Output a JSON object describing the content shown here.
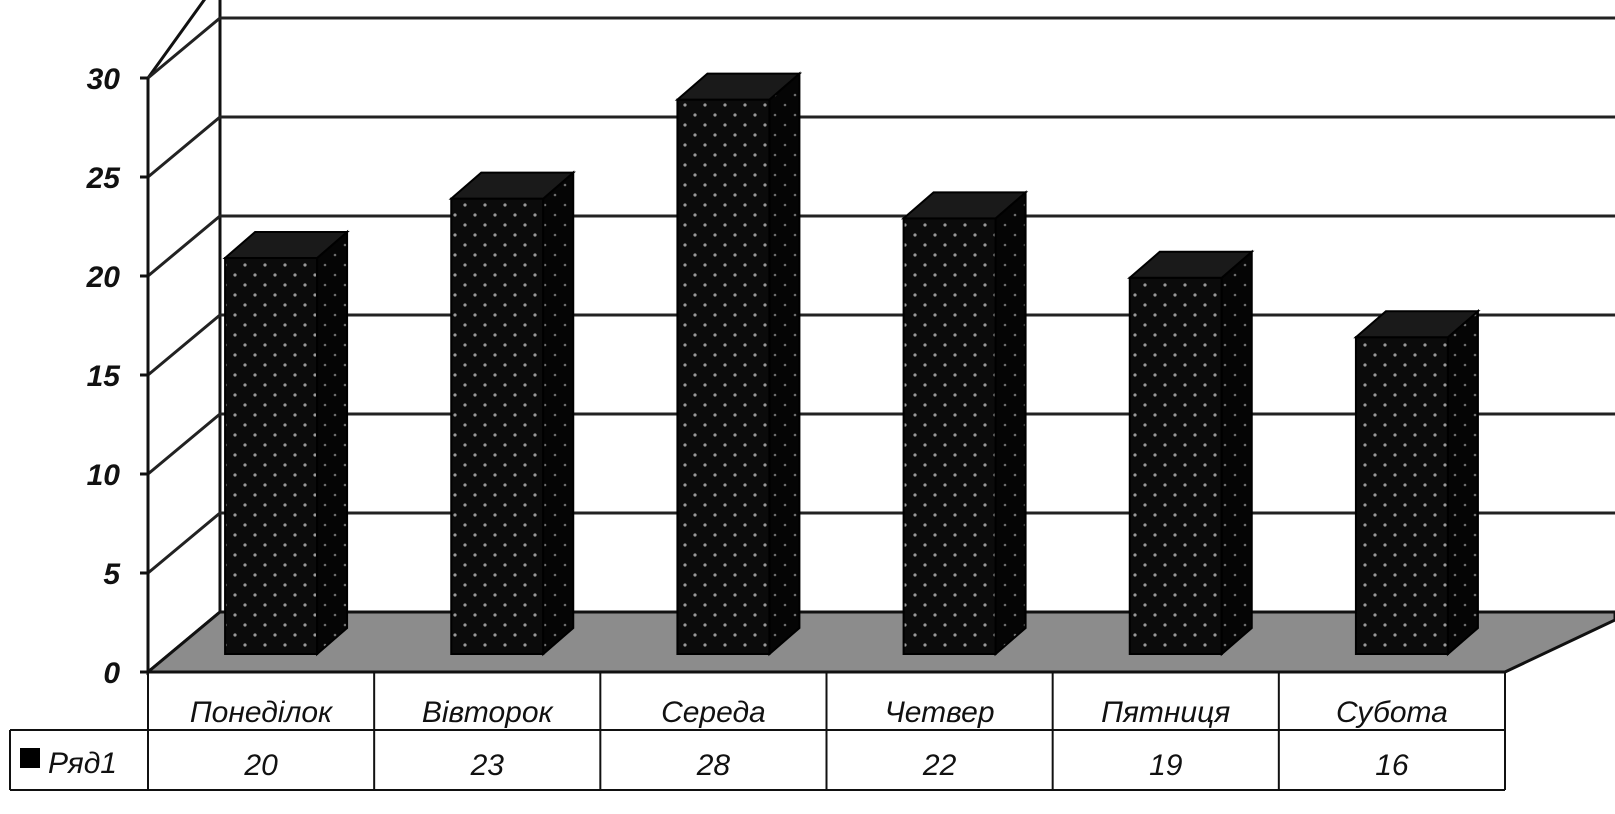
{
  "chart_data": {
    "type": "bar",
    "three_d": true,
    "categories": [
      "Понеділок",
      "Вівторок",
      "Середа",
      "Четвер",
      "Пятниця",
      "Субота"
    ],
    "series": [
      {
        "name": "Ряд1",
        "values": [
          20,
          23,
          28,
          22,
          19,
          16
        ]
      }
    ],
    "ylim": [
      0,
      30
    ],
    "y_ticks": [
      "0",
      "5",
      "10",
      "15",
      "20",
      "25",
      "30"
    ],
    "grid": true,
    "data_table": true,
    "colors": {
      "bar_front": "#0b0b0b",
      "bar_side": "#050505",
      "bar_top": "#1a1a1a",
      "floor": "#8c8c8c",
      "grid": "#222222"
    }
  }
}
